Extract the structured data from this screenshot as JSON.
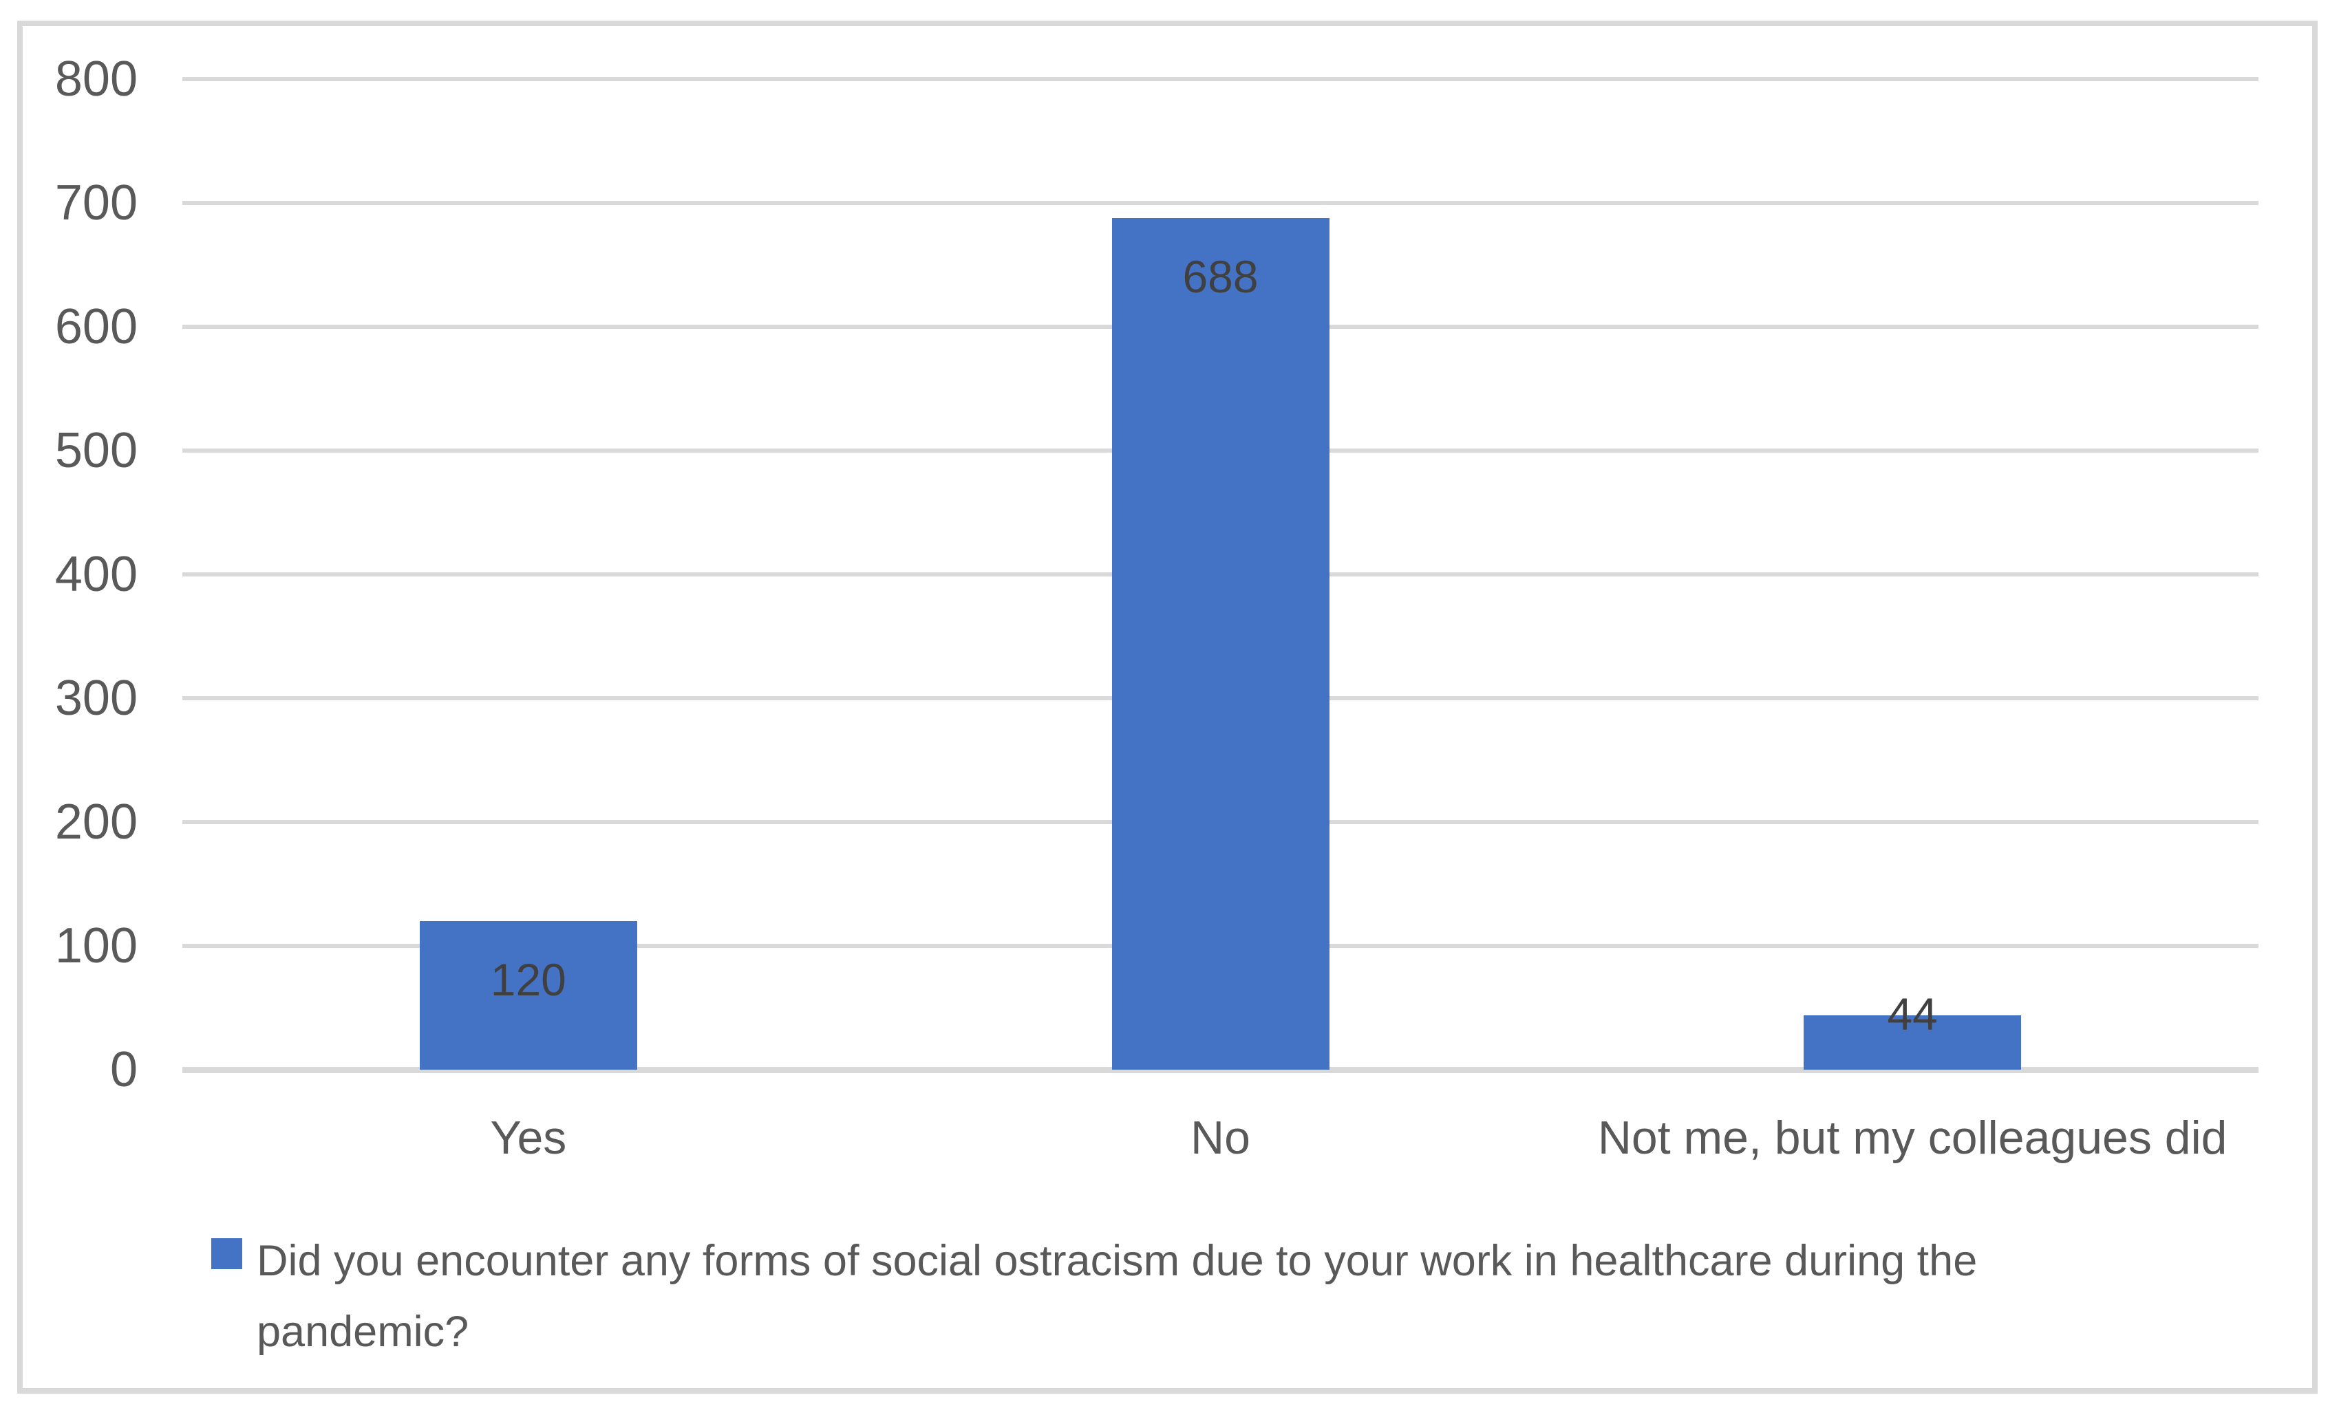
{
  "chart_data": {
    "type": "bar",
    "title": "",
    "categories": [
      "Yes",
      "No",
      "Not me, but my colleagues did"
    ],
    "values": [
      120,
      688,
      44
    ],
    "data_labels": [
      "120",
      "688",
      "44"
    ],
    "series": [
      {
        "name": "Did you encounter any forms of social ostracism due to your work in healthcare during the pandemic?",
        "values": [
          120,
          688,
          44
        ]
      }
    ],
    "xlabel": "",
    "ylabel": "",
    "ylim": [
      0,
      800
    ],
    "ytick_interval": 100,
    "yticks": [
      800,
      700,
      600,
      500,
      400,
      300,
      200,
      100,
      0
    ],
    "grid": true,
    "legend_position": "bottom"
  },
  "colors": {
    "bar": "#4472C4",
    "gridline": "#D9D9D9",
    "axis_text": "#595959",
    "data_label_text": "#404040",
    "frame_border": "#D9D9D9",
    "background": "#FFFFFF"
  }
}
